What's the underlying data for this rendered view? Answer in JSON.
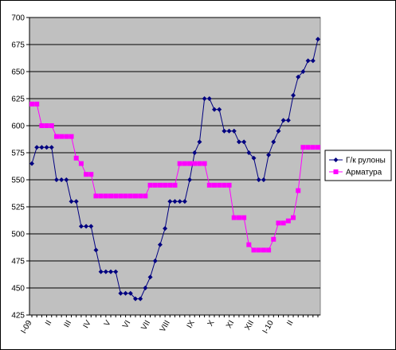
{
  "chart_data": {
    "type": "line",
    "title": "",
    "xlabel": "",
    "ylabel": "",
    "ylim": [
      425,
      700
    ],
    "yticks": [
      425,
      450,
      475,
      500,
      525,
      550,
      575,
      600,
      625,
      650,
      675,
      700
    ],
    "grid": true,
    "legend_position": "right",
    "x_tick_labels": [
      "I-09",
      "II",
      "III",
      "IV",
      "V",
      "VI",
      "VII",
      "VIII",
      "IX",
      "X",
      "XI",
      "XII",
      "I-10",
      "II"
    ],
    "x_tick_index": [
      0,
      4,
      8,
      12,
      16,
      20,
      24,
      28,
      33,
      37,
      41,
      45,
      49,
      53
    ],
    "colors": {
      "plot_bg": "#c0c0c0",
      "grid": "#000000"
    },
    "series": [
      {
        "name": "Г/к рулоны",
        "color": "#000080",
        "marker": "diamond",
        "values": [
          565,
          580,
          580,
          580,
          580,
          550,
          550,
          550,
          530,
          530,
          507,
          507,
          507,
          485,
          465,
          465,
          465,
          465,
          445,
          445,
          445,
          440,
          440,
          450,
          460,
          475,
          490,
          505,
          530,
          530,
          530,
          530,
          550,
          575,
          585,
          625,
          625,
          615,
          615,
          595,
          595,
          595,
          585,
          585,
          575,
          570,
          550,
          550,
          573,
          585,
          595,
          605,
          605,
          628,
          645,
          650,
          660,
          660,
          680
        ]
      },
      {
        "name": "Арматура",
        "color": "#ff00ff",
        "marker": "square",
        "values": [
          620,
          620,
          600,
          600,
          600,
          590,
          590,
          590,
          590,
          570,
          565,
          555,
          555,
          535,
          535,
          535,
          535,
          535,
          535,
          535,
          535,
          535,
          535,
          535,
          545,
          545,
          545,
          545,
          545,
          545,
          565,
          565,
          565,
          565,
          565,
          565,
          545,
          545,
          545,
          545,
          545,
          515,
          515,
          515,
          490,
          485,
          485,
          485,
          485,
          495,
          510,
          510,
          512,
          515,
          540,
          580,
          580,
          580,
          580
        ]
      }
    ]
  }
}
